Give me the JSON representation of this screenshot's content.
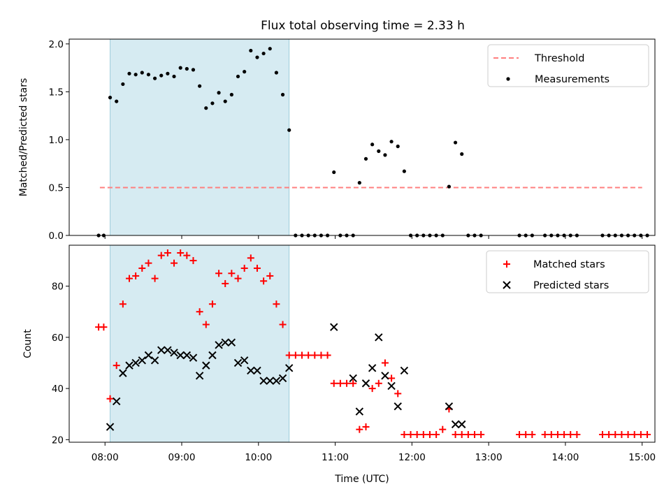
{
  "title": "Flux total observing time = 2.33 h",
  "colors": {
    "threshold": "#ff7f7f",
    "measurement": "#000000",
    "matched": "#ff0000",
    "predicted": "#000000",
    "shade": "#add8e6"
  },
  "chart_data": [
    {
      "type": "scatter",
      "name": "ratio-panel",
      "ylabel": "Matched/Predicted stars",
      "ylim": [
        0,
        2.05
      ],
      "xlim": [
        "07:32",
        "15:10"
      ],
      "yticks": [
        "0.0",
        "0.5",
        "1.0",
        "1.5",
        "2.0"
      ],
      "ytick_values": [
        0,
        0.5,
        1,
        1.5,
        2
      ],
      "shaded_interval": [
        "08:04",
        "10:24"
      ],
      "legend": [
        "Threshold",
        "Measurements"
      ],
      "legend_position": "top-right",
      "threshold": {
        "name": "Threshold",
        "y": 0.5,
        "x_range": [
          "07:56",
          "15:00"
        ]
      },
      "series": [
        {
          "name": "Measurements",
          "x": [
            "07:55",
            "07:59",
            "08:04",
            "08:09",
            "08:14",
            "08:19",
            "08:24",
            "08:29",
            "08:34",
            "08:39",
            "08:44",
            "08:49",
            "08:54",
            "08:59",
            "09:04",
            "09:09",
            "09:14",
            "09:19",
            "09:24",
            "09:29",
            "09:34",
            "09:39",
            "09:44",
            "09:49",
            "09:54",
            "09:59",
            "10:04",
            "10:09",
            "10:14",
            "10:19",
            "10:24",
            "10:29",
            "10:34",
            "10:39",
            "10:44",
            "10:49",
            "10:54",
            "10:59",
            "11:04",
            "11:09",
            "11:14",
            "11:19",
            "11:24",
            "11:29",
            "11:34",
            "11:39",
            "11:44",
            "11:49",
            "11:54",
            "11:59",
            "12:04",
            "12:09",
            "12:14",
            "12:19",
            "12:24",
            "12:29",
            "12:34",
            "12:39",
            "12:44",
            "12:49",
            "12:54",
            "13:24",
            "13:29",
            "13:34",
            "13:44",
            "13:49",
            "13:54",
            "13:59",
            "14:04",
            "14:09",
            "14:29",
            "14:34",
            "14:39",
            "14:44",
            "14:49",
            "14:54",
            "14:59",
            "15:04"
          ],
          "y": [
            0,
            0,
            1.44,
            1.4,
            1.58,
            1.69,
            1.68,
            1.7,
            1.68,
            1.64,
            1.67,
            1.69,
            1.66,
            1.75,
            1.74,
            1.73,
            1.56,
            1.33,
            1.38,
            1.49,
            1.4,
            1.47,
            1.66,
            1.71,
            1.93,
            1.86,
            1.9,
            1.95,
            1.7,
            1.47,
            1.1,
            0,
            0,
            0,
            0,
            0,
            0,
            0.66,
            0,
            0,
            0,
            0.55,
            0.8,
            0.95,
            0.88,
            0.84,
            0.98,
            0.93,
            0.67,
            0,
            0,
            0,
            0,
            0,
            0,
            0.51,
            0.97,
            0.85,
            0,
            0,
            0,
            0,
            0,
            0,
            0,
            0,
            0,
            0,
            0,
            0,
            0,
            0,
            0,
            0,
            0,
            0,
            0,
            0
          ]
        }
      ]
    },
    {
      "type": "scatter",
      "name": "count-panel",
      "ylabel": "Count",
      "xlabel": "Time (UTC)",
      "ylim": [
        19,
        96
      ],
      "xlim": [
        "07:32",
        "15:10"
      ],
      "yticks": [
        "20",
        "40",
        "60",
        "80"
      ],
      "ytick_values": [
        20,
        40,
        60,
        80
      ],
      "xticks": [
        "08:00",
        "09:00",
        "10:00",
        "11:00",
        "12:00",
        "13:00",
        "14:00",
        "15:00"
      ],
      "shaded_interval": [
        "08:04",
        "10:24"
      ],
      "legend": [
        "Matched stars",
        "Predicted stars"
      ],
      "legend_position": "top-right",
      "series": [
        {
          "name": "Matched stars",
          "marker": "plus",
          "x": [
            "07:55",
            "07:59",
            "08:04",
            "08:09",
            "08:14",
            "08:19",
            "08:24",
            "08:29",
            "08:34",
            "08:39",
            "08:44",
            "08:49",
            "08:54",
            "08:59",
            "09:04",
            "09:09",
            "09:14",
            "09:19",
            "09:24",
            "09:29",
            "09:34",
            "09:39",
            "09:44",
            "09:49",
            "09:54",
            "09:59",
            "10:04",
            "10:09",
            "10:14",
            "10:19",
            "10:24",
            "10:29",
            "10:34",
            "10:39",
            "10:44",
            "10:49",
            "10:54",
            "10:59",
            "11:04",
            "11:09",
            "11:14",
            "11:19",
            "11:24",
            "11:29",
            "11:34",
            "11:39",
            "11:44",
            "11:49",
            "11:54",
            "11:59",
            "12:04",
            "12:09",
            "12:14",
            "12:19",
            "12:24",
            "12:29",
            "12:34",
            "12:39",
            "12:44",
            "12:49",
            "12:54",
            "13:24",
            "13:29",
            "13:34",
            "13:44",
            "13:49",
            "13:54",
            "13:59",
            "14:04",
            "14:09",
            "14:29",
            "14:34",
            "14:39",
            "14:44",
            "14:49",
            "14:54",
            "14:59",
            "15:04"
          ],
          "y": [
            64,
            64,
            36,
            49,
            73,
            83,
            84,
            87,
            89,
            83,
            92,
            93,
            89,
            93,
            92,
            90,
            70,
            65,
            73,
            85,
            81,
            85,
            83,
            87,
            91,
            87,
            82,
            84,
            73,
            65,
            53,
            53,
            53,
            53,
            53,
            53,
            53,
            42,
            42,
            42,
            42,
            24,
            25,
            40,
            42,
            50,
            44,
            38,
            22,
            22,
            22,
            22,
            22,
            22,
            24,
            32,
            22,
            22,
            22,
            22,
            22,
            22,
            22,
            22,
            22,
            22,
            22,
            22,
            22,
            22,
            22,
            22,
            22,
            22,
            22,
            22,
            22,
            22
          ]
        },
        {
          "name": "Predicted stars",
          "marker": "x",
          "x": [
            "08:04",
            "08:09",
            "08:14",
            "08:19",
            "08:24",
            "08:29",
            "08:34",
            "08:39",
            "08:44",
            "08:49",
            "08:54",
            "08:59",
            "09:04",
            "09:09",
            "09:14",
            "09:19",
            "09:24",
            "09:29",
            "09:34",
            "09:39",
            "09:44",
            "09:49",
            "09:54",
            "09:59",
            "10:04",
            "10:09",
            "10:14",
            "10:19",
            "10:24",
            "10:59",
            "11:14",
            "11:19",
            "11:24",
            "11:29",
            "11:34",
            "11:39",
            "11:44",
            "11:49",
            "11:54",
            "12:29",
            "12:34",
            "12:39"
          ],
          "y": [
            25,
            35,
            46,
            49,
            50,
            51,
            53,
            51,
            55,
            55,
            54,
            53,
            53,
            52,
            45,
            49,
            53,
            57,
            58,
            58,
            50,
            51,
            47,
            47,
            43,
            43,
            43,
            44,
            48,
            64,
            44,
            31,
            42,
            48,
            60,
            45,
            41,
            33,
            47,
            33,
            26,
            26
          ]
        }
      ]
    }
  ]
}
